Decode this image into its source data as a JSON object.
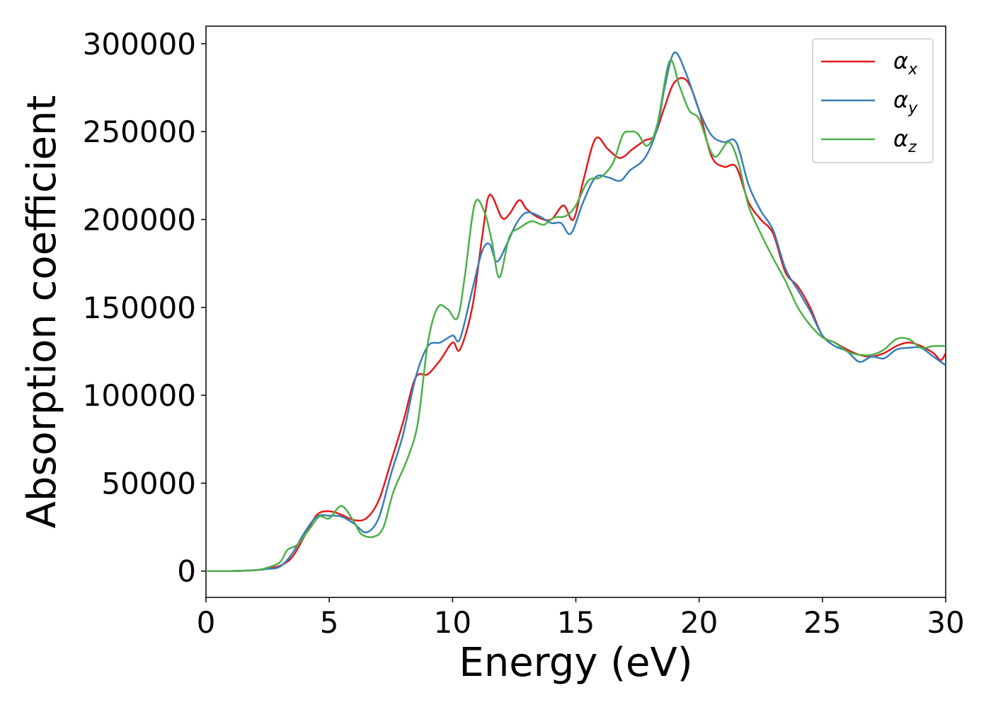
{
  "chart_data": {
    "type": "line",
    "title": "",
    "xlabel": "Energy (eV)",
    "ylabel": "Absorption coefficient",
    "xlim": [
      0,
      30
    ],
    "ylim": [
      -15000,
      310000
    ],
    "xticks": [
      0,
      5,
      10,
      15,
      20,
      25,
      30
    ],
    "yticks": [
      0,
      50000,
      100000,
      150000,
      200000,
      250000,
      300000
    ],
    "xtick_labels": [
      "0",
      "5",
      "10",
      "15",
      "20",
      "25",
      "30"
    ],
    "ytick_labels": [
      "0",
      "50000",
      "100000",
      "150000",
      "200000",
      "250000",
      "300000"
    ],
    "grid": false,
    "legend_position": "top-right",
    "series": [
      {
        "name": "α_x",
        "legend_base": "α",
        "legend_sub": "x",
        "color": "#e41a1c",
        "points": [
          [
            0,
            0
          ],
          [
            1,
            0
          ],
          [
            2,
            500
          ],
          [
            2.5,
            1500
          ],
          [
            3,
            3000
          ],
          [
            3.5,
            8000
          ],
          [
            4,
            20000
          ],
          [
            4.5,
            32000
          ],
          [
            5,
            34000
          ],
          [
            5.5,
            32000
          ],
          [
            6,
            29000
          ],
          [
            6.5,
            30000
          ],
          [
            7,
            40000
          ],
          [
            7.5,
            62000
          ],
          [
            8,
            85000
          ],
          [
            8.5,
            110000
          ],
          [
            9,
            112000
          ],
          [
            9.5,
            120000
          ],
          [
            10,
            130000
          ],
          [
            10.3,
            126000
          ],
          [
            10.8,
            150000
          ],
          [
            11.2,
            190000
          ],
          [
            11.5,
            214000
          ],
          [
            12,
            201000
          ],
          [
            12.3,
            203000
          ],
          [
            12.7,
            211000
          ],
          [
            13,
            206000
          ],
          [
            13.5,
            201000
          ],
          [
            14,
            200000
          ],
          [
            14.5,
            208000
          ],
          [
            14.9,
            200000
          ],
          [
            15.3,
            222000
          ],
          [
            15.8,
            246000
          ],
          [
            16.3,
            240000
          ],
          [
            16.8,
            235000
          ],
          [
            17.3,
            240000
          ],
          [
            17.8,
            245000
          ],
          [
            18.2,
            248000
          ],
          [
            18.6,
            264000
          ],
          [
            19,
            278000
          ],
          [
            19.5,
            279000
          ],
          [
            20,
            262000
          ],
          [
            20.5,
            236000
          ],
          [
            21,
            230000
          ],
          [
            21.5,
            230000
          ],
          [
            22,
            210000
          ],
          [
            22.5,
            200000
          ],
          [
            23,
            192000
          ],
          [
            23.5,
            170000
          ],
          [
            24,
            162000
          ],
          [
            24.5,
            150000
          ],
          [
            25,
            134000
          ],
          [
            25.5,
            130000
          ],
          [
            26,
            126000
          ],
          [
            26.5,
            123000
          ],
          [
            27,
            122000
          ],
          [
            27.5,
            124000
          ],
          [
            28,
            128000
          ],
          [
            28.5,
            130000
          ],
          [
            29,
            128000
          ],
          [
            29.5,
            124000
          ],
          [
            29.8,
            120000
          ],
          [
            30,
            124000
          ]
        ]
      },
      {
        "name": "α_y",
        "legend_base": "α",
        "legend_sub": "y",
        "color": "#377eb8",
        "points": [
          [
            0,
            0
          ],
          [
            1,
            0
          ],
          [
            2,
            500
          ],
          [
            2.5,
            1200
          ],
          [
            3,
            2500
          ],
          [
            3.5,
            10000
          ],
          [
            4,
            22000
          ],
          [
            4.5,
            31000
          ],
          [
            5,
            31500
          ],
          [
            5.5,
            31000
          ],
          [
            6,
            27000
          ],
          [
            6.5,
            22000
          ],
          [
            7,
            30000
          ],
          [
            7.5,
            55000
          ],
          [
            8,
            78000
          ],
          [
            8.5,
            110000
          ],
          [
            9,
            128000
          ],
          [
            9.5,
            130000
          ],
          [
            10,
            134000
          ],
          [
            10.3,
            132000
          ],
          [
            10.8,
            160000
          ],
          [
            11.2,
            182000
          ],
          [
            11.5,
            186000
          ],
          [
            11.8,
            176000
          ],
          [
            12.2,
            186000
          ],
          [
            12.6,
            198000
          ],
          [
            13,
            204000
          ],
          [
            13.5,
            202000
          ],
          [
            14,
            198000
          ],
          [
            14.4,
            198000
          ],
          [
            14.8,
            192000
          ],
          [
            15.3,
            210000
          ],
          [
            15.8,
            224000
          ],
          [
            16.3,
            224000
          ],
          [
            16.8,
            222000
          ],
          [
            17.2,
            228000
          ],
          [
            17.8,
            235000
          ],
          [
            18.3,
            252000
          ],
          [
            18.6,
            275000
          ],
          [
            19,
            295000
          ],
          [
            19.5,
            282000
          ],
          [
            20,
            262000
          ],
          [
            20.5,
            248000
          ],
          [
            21,
            244000
          ],
          [
            21.5,
            244000
          ],
          [
            22,
            220000
          ],
          [
            22.5,
            205000
          ],
          [
            23,
            194000
          ],
          [
            23.5,
            172000
          ],
          [
            24,
            160000
          ],
          [
            24.5,
            148000
          ],
          [
            25,
            134000
          ],
          [
            25.5,
            128000
          ],
          [
            26,
            125000
          ],
          [
            26.5,
            119000
          ],
          [
            27,
            122000
          ],
          [
            27.5,
            121000
          ],
          [
            28,
            126000
          ],
          [
            28.5,
            127000
          ],
          [
            29,
            127000
          ],
          [
            29.5,
            122000
          ],
          [
            30,
            117000
          ]
        ]
      },
      {
        "name": "α_z",
        "legend_base": "α",
        "legend_sub": "z",
        "color": "#4daf4a",
        "points": [
          [
            0,
            0
          ],
          [
            1,
            0
          ],
          [
            2,
            500
          ],
          [
            2.5,
            2000
          ],
          [
            3,
            5000
          ],
          [
            3.3,
            12000
          ],
          [
            3.7,
            15000
          ],
          [
            4.2,
            24000
          ],
          [
            4.6,
            31000
          ],
          [
            5,
            30000
          ],
          [
            5.5,
            37000
          ],
          [
            6,
            28000
          ],
          [
            6.3,
            21000
          ],
          [
            6.8,
            19500
          ],
          [
            7.2,
            25000
          ],
          [
            7.6,
            45000
          ],
          [
            8.2,
            65000
          ],
          [
            8.6,
            85000
          ],
          [
            9,
            130000
          ],
          [
            9.4,
            150000
          ],
          [
            9.8,
            149000
          ],
          [
            10.2,
            144000
          ],
          [
            10.5,
            168000
          ],
          [
            10.9,
            209000
          ],
          [
            11.3,
            204000
          ],
          [
            11.6,
            187000
          ],
          [
            11.9,
            167000
          ],
          [
            12.3,
            190000
          ],
          [
            12.7,
            195000
          ],
          [
            13.2,
            199000
          ],
          [
            13.7,
            197000
          ],
          [
            14.1,
            201000
          ],
          [
            14.6,
            202000
          ],
          [
            15,
            208000
          ],
          [
            15.5,
            222000
          ],
          [
            16,
            224000
          ],
          [
            16.5,
            232000
          ],
          [
            16.9,
            248000
          ],
          [
            17.2,
            250000
          ],
          [
            17.5,
            249000
          ],
          [
            17.9,
            242000
          ],
          [
            18.3,
            254000
          ],
          [
            18.8,
            290000
          ],
          [
            19.2,
            276000
          ],
          [
            19.6,
            262000
          ],
          [
            20,
            257000
          ],
          [
            20.6,
            236000
          ],
          [
            21.2,
            244000
          ],
          [
            21.6,
            232000
          ],
          [
            22,
            208000
          ],
          [
            22.5,
            192000
          ],
          [
            23,
            178000
          ],
          [
            23.5,
            165000
          ],
          [
            24,
            150000
          ],
          [
            24.5,
            140000
          ],
          [
            25,
            133000
          ],
          [
            25.5,
            130000
          ],
          [
            26,
            125000
          ],
          [
            26.5,
            123000
          ],
          [
            27,
            123000
          ],
          [
            27.5,
            126000
          ],
          [
            28,
            132000
          ],
          [
            28.5,
            132000
          ],
          [
            29,
            127000
          ],
          [
            29.5,
            128000
          ],
          [
            30,
            128000
          ]
        ]
      }
    ]
  }
}
